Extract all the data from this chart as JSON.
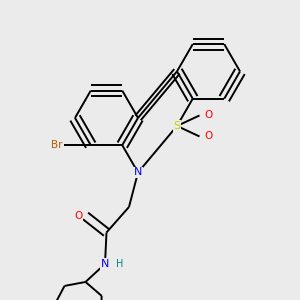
{
  "background_color": "#ebebeb",
  "bond_color": "#000000",
  "atom_colors": {
    "Br": "#b85c00",
    "N": "#0000ee",
    "S": "#cccc00",
    "O": "#ff0000",
    "H": "#008080",
    "C": "#000000"
  },
  "figsize": [
    3.0,
    3.0
  ],
  "dpi": 100
}
